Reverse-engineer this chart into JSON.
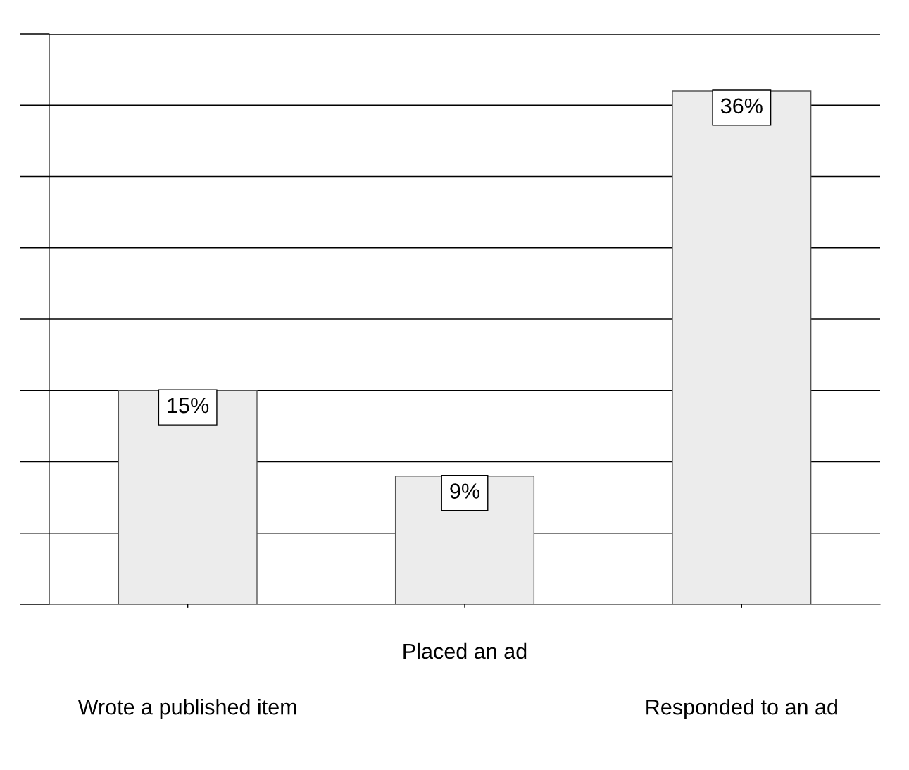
{
  "chart_data": {
    "type": "bar",
    "categories": [
      "Wrote a published item",
      "Placed an ad",
      "Responded to an ad"
    ],
    "values": [
      15,
      9,
      36
    ],
    "value_labels": [
      "15%",
      "9%",
      "36%"
    ],
    "color": "#ececec",
    "ylim": [
      0,
      40
    ],
    "yticks": [
      {
        "value": 0,
        "label": null
      },
      {
        "value": 5,
        "label": null
      },
      {
        "value": 10,
        "label": null
      },
      {
        "value": 15,
        "label": null
      },
      {
        "value": 20,
        "label": null
      },
      {
        "value": 25,
        "label": null
      },
      {
        "value": 30,
        "label": null
      },
      {
        "value": 35,
        "label": null
      },
      {
        "value": 40,
        "label": null
      }
    ],
    "grid": "y",
    "legend": false
  }
}
